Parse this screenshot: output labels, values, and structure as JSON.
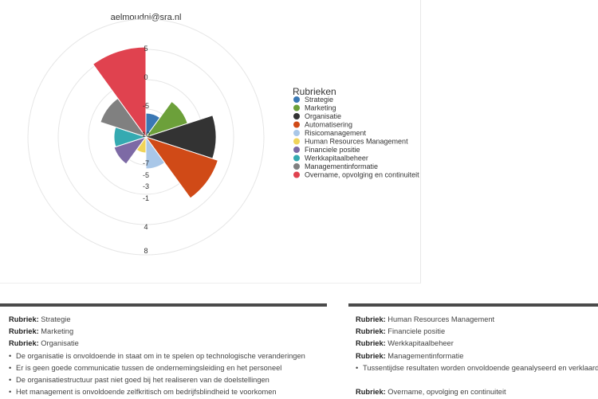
{
  "chart": {
    "title": "aelmoudni@sra.nl",
    "radial_ticks": [
      "8",
      "4",
      "-1",
      "-3",
      "-5",
      "-7",
      "10",
      "-5",
      "0",
      "5"
    ],
    "legend_title": "Rubrieken"
  },
  "chart_data": {
    "type": "polar-area",
    "title": "aelmoudni@sra.nl",
    "series": [
      {
        "name": "Strategie",
        "color": "#3a78b4",
        "value": 3.0
      },
      {
        "name": "Marketing",
        "color": "#6ca03a",
        "value": 5.5
      },
      {
        "name": "Organisatie",
        "color": "#333333",
        "value": 8.8
      },
      {
        "name": "Automatisering",
        "color": "#d04a17",
        "value": 9.5
      },
      {
        "name": "Risicomanagement",
        "color": "#a9c7e8",
        "value": 4.0
      },
      {
        "name": "Human Resources Management",
        "color": "#f0d45a",
        "value": 2.0
      },
      {
        "name": "Financiele positie",
        "color": "#7d6aa5",
        "value": 4.2
      },
      {
        "name": "Werkkapitaalbeheer",
        "color": "#35aab1",
        "value": 4.0
      },
      {
        "name": "Managementinformatie",
        "color": "#808080",
        "value": 6.0
      },
      {
        "name": "Overname, opvolging en continuiteit",
        "color": "#e0424f",
        "value": 11.3
      }
    ]
  },
  "panels": {
    "left": {
      "rows": [
        {
          "kind": "label",
          "label": "Rubriek:",
          "text": "Strategie"
        },
        {
          "kind": "label",
          "label": "Rubriek:",
          "text": "Marketing"
        },
        {
          "kind": "label",
          "label": "Rubriek:",
          "text": "Organisatie"
        },
        {
          "kind": "bullet",
          "text": "De organisatie is onvoldoende in staat om in te spelen op technologische veranderingen"
        },
        {
          "kind": "bullet",
          "text": "Er is geen goede communicatie tussen de ondernemingsleiding en het personeel"
        },
        {
          "kind": "bullet",
          "text": "De organisatiestructuur past niet goed bij het realiseren van de doelstellingen"
        },
        {
          "kind": "bullet",
          "text": "Het management is onvoldoende zelfkritisch om bedrijfsblindheid te voorkomen"
        }
      ]
    },
    "right": {
      "rows": [
        {
          "kind": "label",
          "label": "Rubriek:",
          "text": "Human Resources Management"
        },
        {
          "kind": "label",
          "label": "Rubriek:",
          "text": "Financiele positie"
        },
        {
          "kind": "label",
          "label": "Rubriek:",
          "text": "Werkkapitaalbeheer"
        },
        {
          "kind": "label",
          "label": "Rubriek:",
          "text": "Managementinformatie"
        },
        {
          "kind": "bullet",
          "text": "Tussentijdse resultaten worden onvoldoende geanalyseerd en verklaard."
        },
        {
          "kind": "spacer"
        },
        {
          "kind": "label",
          "label": "Rubriek:",
          "text": "Overname, opvolging en continuiteit"
        }
      ]
    }
  }
}
